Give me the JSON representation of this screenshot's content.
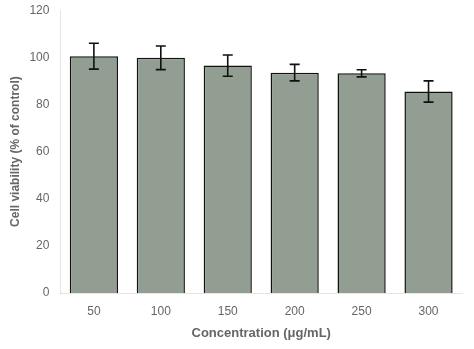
{
  "chart_data": {
    "type": "bar",
    "categories": [
      "50",
      "100",
      "150",
      "200",
      "250",
      "300"
    ],
    "values": [
      100.5,
      99.8,
      96.5,
      93.5,
      93.2,
      85.5
    ],
    "errors": [
      5.5,
      5.0,
      4.5,
      3.5,
      1.5,
      4.5
    ],
    "color": "#919e91",
    "xlabel": "Concentration (μg/mL)",
    "ylabel": "Cell viability (% of control)",
    "ylim": [
      0,
      120
    ],
    "yticks": [
      0,
      20,
      40,
      60,
      80,
      100,
      120
    ],
    "grid": false
  }
}
